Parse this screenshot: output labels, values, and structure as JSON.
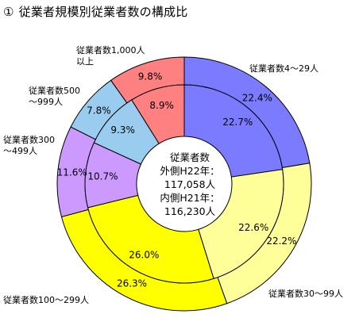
{
  "title": {
    "number": "①",
    "text": "従業者規模別従業者数の構成比"
  },
  "center": {
    "line1": "従業者数",
    "line2": "外側H22年：",
    "line3": "117,058人",
    "line4": "内側H21年：",
    "line5": "116,230人"
  },
  "category_labels": {
    "c1000": [
      "従業者数1,000人",
      "以上"
    ],
    "c4_29": "従業者数4～29人",
    "c500": [
      "従業者数500",
      "～999人"
    ],
    "c300": [
      "従業者数300",
      "～499人"
    ],
    "c30_99": "従業者数30～99人",
    "c100_299": "従業者数100～299人"
  },
  "colors": {
    "c4_29": "#7b7bff",
    "c30_99": "#ffff99",
    "c100_299": "#ffff00",
    "c300_499": "#cc99ff",
    "c500_999": "#99ccee",
    "c1000": "#ff8080",
    "stroke": "#000000"
  },
  "chart_data": {
    "type": "donut",
    "title": "従業者規模別従業者数の構成比",
    "categories": [
      "従業者数4～29人",
      "従業者数30～99人",
      "従業者数100～299人",
      "従業者数300～499人",
      "従業者数500～999人",
      "従業者数1,000人以上"
    ],
    "series": [
      {
        "name": "外側H22年",
        "ring": "outer",
        "values": [
          22.4,
          22.2,
          26.3,
          11.6,
          7.8,
          9.8
        ],
        "labels": [
          "22.4%",
          "22.2%",
          "26.3%",
          "11.6%",
          "7.8%",
          "9.8%"
        ]
      },
      {
        "name": "内側H21年",
        "ring": "inner",
        "values": [
          22.7,
          22.6,
          26.0,
          10.7,
          9.3,
          8.9
        ],
        "labels": [
          "22.7%",
          "22.6%",
          "26.0%",
          "10.7%",
          "9.3%",
          "8.9%"
        ]
      }
    ],
    "totals": {
      "outer": "117,058人",
      "inner": "116,230人"
    }
  }
}
